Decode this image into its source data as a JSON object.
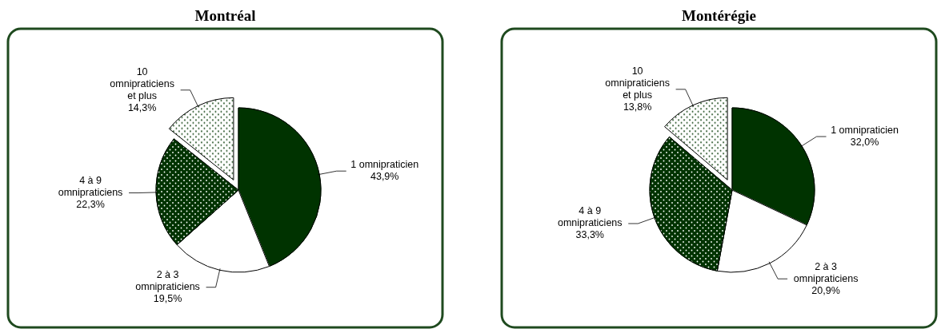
{
  "chart_data": [
    {
      "type": "pie",
      "title": "Montréal",
      "categories": [
        "1 omnipraticien",
        "2 à 3 omnipraticiens",
        "4 à 9 omnipraticiens",
        "10 omnipraticiens et plus"
      ],
      "values": [
        43.9,
        19.5,
        22.3,
        14.3
      ],
      "value_labels": [
        "43,9%",
        "19,5%",
        "22,3%",
        "14,3%"
      ],
      "colors": [
        "#003300",
        "#ffffff",
        "#003300",
        "#ffffff"
      ]
    },
    {
      "type": "pie",
      "title": "Montérégie",
      "categories": [
        "1 omnipraticien",
        "2 à 3 omnipraticiens",
        "4 à 9 omnipraticiens",
        "10 omnipraticiens et plus"
      ],
      "values": [
        32.0,
        20.9,
        33.3,
        13.8
      ],
      "value_labels": [
        "32,0%",
        "20,9%",
        "33,3%",
        "13,8%"
      ],
      "colors": [
        "#003300",
        "#ffffff",
        "#003300",
        "#ffffff"
      ]
    }
  ]
}
